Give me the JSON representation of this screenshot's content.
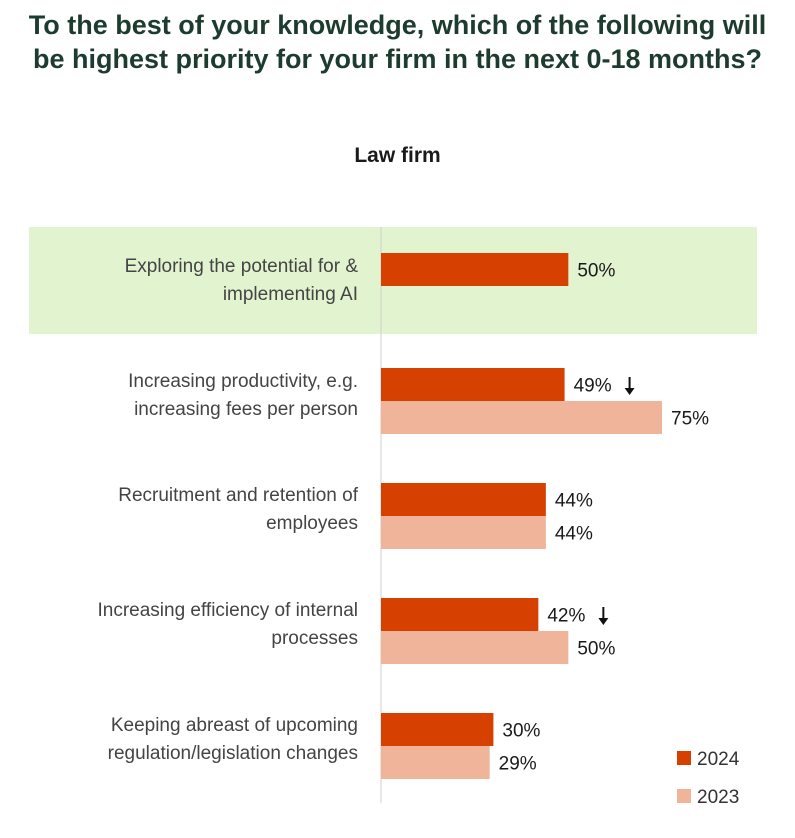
{
  "chart_data": {
    "type": "bar",
    "orientation": "horizontal",
    "title": "To the best of your knowledge, which of the following will be highest priority for your firm in the next 0-18 months?",
    "subtitle": "Law firm",
    "categories": [
      "Exploring the potential for & implementing AI",
      "Increasing productivity, e.g. increasing fees per person",
      "Recruitment and retention of employees",
      "Increasing efficiency of internal processes",
      "Keeping abreast of upcoming regulation/legislation changes"
    ],
    "category_lines": [
      [
        "Exploring the potential for &",
        "implementing AI"
      ],
      [
        "Increasing productivity, e.g.",
        "increasing fees per person"
      ],
      [
        "Recruitment and retention of",
        "employees"
      ],
      [
        "Increasing efficiency of internal",
        "processes"
      ],
      [
        "Keeping abreast of upcoming",
        "regulation/legislation changes"
      ]
    ],
    "series": [
      {
        "name": "2024",
        "color": "#d64000",
        "values": [
          50,
          49,
          44,
          42,
          30
        ],
        "labels": [
          "50%",
          "49%",
          "44%",
          "42%",
          "30%"
        ],
        "decrease_marker": [
          false,
          true,
          false,
          true,
          false
        ]
      },
      {
        "name": "2023",
        "color": "#efb49a",
        "values": [
          null,
          75,
          44,
          50,
          29
        ],
        "labels": [
          null,
          "75%",
          "44%",
          "50%",
          "29%"
        ]
      }
    ],
    "xlim": [
      0,
      100
    ],
    "highlight_category": 0,
    "highlight_color": "#e2f4cf",
    "legend_position": "bottom-right",
    "grid": false
  }
}
